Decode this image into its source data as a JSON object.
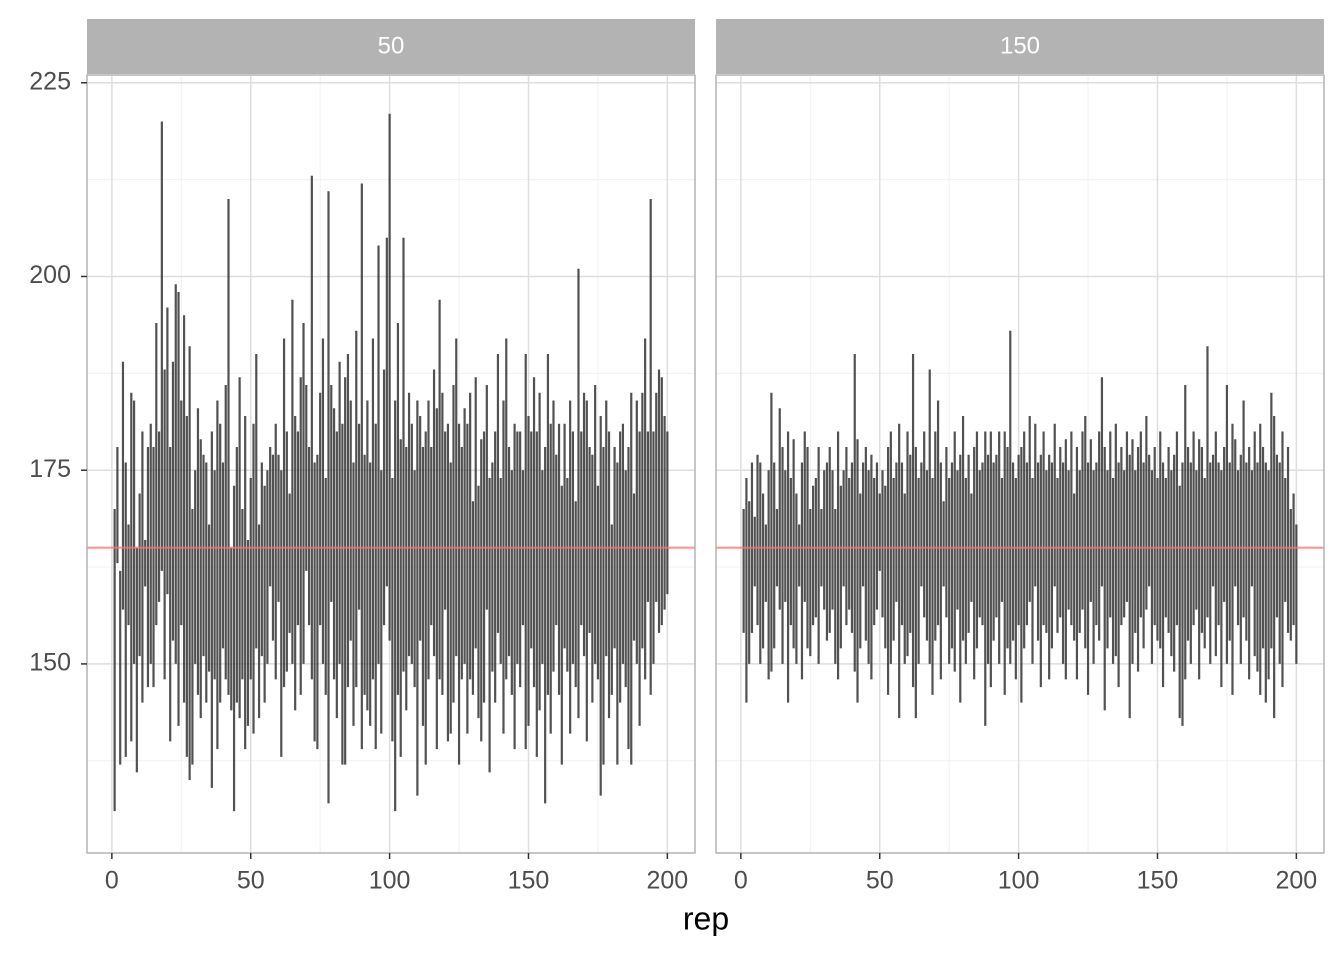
{
  "chart_data": {
    "type": "linerange",
    "xlabel": "rep",
    "color": "#333333",
    "hline": 165,
    "hline_color": "#f8766d",
    "xlim": [
      -8.95,
      209.95
    ],
    "ylim": [
      125.6,
      226.0
    ],
    "xticks": [
      0,
      50,
      100,
      150,
      200
    ],
    "yticks": [
      150,
      175,
      200,
      225
    ],
    "xminor": [
      25,
      75,
      125,
      175
    ],
    "yminor": [
      137.5,
      162.5,
      187.5,
      212.5
    ],
    "grid": true,
    "x": [
      1,
      2,
      3,
      4,
      5,
      6,
      7,
      8,
      9,
      10,
      11,
      12,
      13,
      14,
      15,
      16,
      17,
      18,
      19,
      20,
      21,
      22,
      23,
      24,
      25,
      26,
      27,
      28,
      29,
      30,
      31,
      32,
      33,
      34,
      35,
      36,
      37,
      38,
      39,
      40,
      41,
      42,
      43,
      44,
      45,
      46,
      47,
      48,
      49,
      50,
      51,
      52,
      53,
      54,
      55,
      56,
      57,
      58,
      59,
      60,
      61,
      62,
      63,
      64,
      65,
      66,
      67,
      68,
      69,
      70,
      71,
      72,
      73,
      74,
      75,
      76,
      77,
      78,
      79,
      80,
      81,
      82,
      83,
      84,
      85,
      86,
      87,
      88,
      89,
      90,
      91,
      92,
      93,
      94,
      95,
      96,
      97,
      98,
      99,
      100,
      101,
      102,
      103,
      104,
      105,
      106,
      107,
      108,
      109,
      110,
      111,
      112,
      113,
      114,
      115,
      116,
      117,
      118,
      119,
      120,
      121,
      122,
      123,
      124,
      125,
      126,
      127,
      128,
      129,
      130,
      131,
      132,
      133,
      134,
      135,
      136,
      137,
      138,
      139,
      140,
      141,
      142,
      143,
      144,
      145,
      146,
      147,
      148,
      149,
      150,
      151,
      152,
      153,
      154,
      155,
      156,
      157,
      158,
      159,
      160,
      161,
      162,
      163,
      164,
      165,
      166,
      167,
      168,
      169,
      170,
      171,
      172,
      173,
      174,
      175,
      176,
      177,
      178,
      179,
      180,
      181,
      182,
      183,
      184,
      185,
      186,
      187,
      188,
      189,
      190,
      191,
      192,
      193,
      194,
      195,
      196,
      197,
      198,
      199,
      200
    ],
    "facets": [
      {
        "label": "50",
        "lower": [
          131,
          163,
          137,
          157,
          138,
          155,
          140,
          150,
          136,
          151,
          145,
          160,
          147,
          150,
          147,
          155,
          158,
          162,
          148,
          159,
          140,
          153,
          150,
          142,
          155,
          145,
          138,
          135,
          137,
          150,
          146,
          143,
          151,
          145,
          149,
          134,
          148,
          139,
          145,
          152,
          148,
          146,
          144,
          131,
          145,
          143,
          148,
          139,
          142,
          148,
          141,
          152,
          143,
          151,
          145,
          150,
          160,
          153,
          148,
          158,
          138,
          147,
          149,
          154,
          150,
          144,
          155,
          146,
          150,
          162,
          155,
          148,
          140,
          139,
          155,
          150,
          146,
          132,
          158,
          148,
          143,
          150,
          137,
          137,
          147,
          153,
          142,
          147,
          157,
          139,
          146,
          144,
          142,
          148,
          139,
          150,
          141,
          155,
          160,
          153,
          140,
          131,
          146,
          138,
          149,
          144,
          151,
          150,
          147,
          133,
          153,
          142,
          137,
          148,
          155,
          151,
          139,
          148,
          146,
          157,
          140,
          141,
          145,
          151,
          137,
          148,
          150,
          141,
          148,
          146,
          152,
          143,
          140,
          145,
          157,
          136,
          149,
          145,
          154,
          150,
          141,
          148,
          151,
          146,
          139,
          150,
          147,
          155,
          139,
          142,
          152,
          147,
          138,
          144,
          150,
          132,
          146,
          141,
          149,
          155,
          146,
          137,
          152,
          149,
          141,
          150,
          147,
          143,
          155,
          151,
          140,
          154,
          145,
          150,
          148,
          133,
          137,
          151,
          143,
          146,
          152,
          137,
          145,
          150,
          147,
          139,
          137,
          153,
          150,
          142,
          152,
          148,
          158,
          146,
          150,
          158,
          154,
          155,
          157,
          159
        ],
        "upper": [
          170,
          178,
          162,
          189,
          176,
          168,
          185,
          184,
          165,
          172,
          180,
          166,
          178,
          181,
          178,
          194,
          180,
          220,
          188,
          196,
          178,
          189,
          199,
          198,
          184,
          195,
          182,
          191,
          170,
          175,
          183,
          179,
          177,
          176,
          168,
          180,
          175,
          184,
          181,
          176,
          186,
          210,
          165,
          173,
          178,
          187,
          170,
          182,
          166,
          174,
          181,
          190,
          168,
          176,
          173,
          175,
          178,
          177,
          181,
          177,
          175,
          192,
          180,
          172,
          197,
          182,
          180,
          187,
          194,
          186,
          178,
          213,
          176,
          177,
          185,
          192,
          174,
          211,
          186,
          183,
          180,
          189,
          181,
          187,
          190,
          184,
          176,
          193,
          181,
          212,
          177,
          184,
          176,
          192,
          181,
          204,
          175,
          188,
          205,
          221,
          174,
          184,
          194,
          179,
          205,
          178,
          185,
          181,
          175,
          184,
          182,
          178,
          180,
          184,
          178,
          188,
          183,
          197,
          185,
          180,
          181,
          176,
          186,
          192,
          181,
          178,
          183,
          181,
          185,
          171,
          187,
          173,
          179,
          180,
          186,
          174,
          176,
          180,
          190,
          174,
          184,
          192,
          178,
          175,
          181,
          180,
          180,
          175,
          190,
          182,
          180,
          187,
          180,
          185,
          175,
          178,
          190,
          181,
          184,
          177,
          181,
          173,
          181,
          174,
          184,
          180,
          171,
          201,
          180,
          185,
          184,
          178,
          177,
          186,
          173,
          182,
          178,
          184,
          180,
          168,
          178,
          176,
          180,
          181,
          175,
          178,
          185,
          172,
          184,
          180,
          185,
          192,
          180,
          210,
          180,
          185,
          188,
          187,
          182,
          180
        ]
      },
      {
        "label": "150",
        "lower": [
          154,
          145,
          150,
          154,
          160,
          155,
          150,
          152,
          158,
          148,
          149,
          152,
          160,
          157,
          150,
          158,
          145,
          155,
          152,
          150,
          160,
          148,
          158,
          152,
          151,
          155,
          156,
          150,
          160,
          157,
          153,
          154,
          157,
          150,
          148,
          152,
          160,
          155,
          157,
          154,
          149,
          145,
          152,
          160,
          153,
          150,
          148,
          155,
          157,
          162,
          156,
          152,
          146,
          150,
          153,
          158,
          143,
          155,
          150,
          151,
          154,
          147,
          143,
          150,
          160,
          156,
          153,
          150,
          146,
          153,
          155,
          148,
          160,
          156,
          150,
          152,
          149,
          157,
          145,
          153,
          150,
          154,
          158,
          148,
          152,
          156,
          155,
          142,
          150,
          147,
          153,
          156,
          150,
          158,
          146,
          152,
          150,
          153,
          148,
          155,
          145,
          152,
          155,
          158,
          150,
          160,
          153,
          147,
          155,
          154,
          148,
          152,
          160,
          154,
          156,
          150,
          148,
          157,
          155,
          153,
          148,
          154,
          157,
          152,
          146,
          158,
          150,
          155,
          153,
          160,
          144,
          152,
          156,
          150,
          151,
          147,
          155,
          156,
          158,
          143,
          150,
          154,
          149,
          156,
          152,
          157,
          160,
          150,
          155,
          153,
          152,
          147,
          156,
          154,
          151,
          149,
          155,
          143,
          142,
          148,
          153,
          150,
          155,
          157,
          148,
          154,
          152,
          156,
          150,
          160,
          151,
          155,
          147,
          158,
          150,
          153,
          146,
          160,
          155,
          150,
          156,
          153,
          148,
          160,
          151,
          149,
          146,
          152,
          145,
          148,
          152,
          143,
          156,
          150,
          147,
          158,
          154,
          153,
          155,
          150
        ],
        "upper": [
          170,
          174,
          171,
          176,
          169,
          177,
          176,
          172,
          168,
          175,
          185,
          176,
          170,
          183,
          178,
          175,
          180,
          174,
          179,
          172,
          168,
          176,
          180,
          178,
          170,
          173,
          174,
          178,
          170,
          175,
          176,
          178,
          175,
          170,
          180,
          173,
          175,
          178,
          174,
          176,
          190,
          179,
          172,
          176,
          178,
          175,
          177,
          174,
          176,
          172,
          175,
          173,
          178,
          180,
          174,
          176,
          181,
          176,
          172,
          180,
          177,
          190,
          178,
          174,
          176,
          180,
          175,
          188,
          174,
          180,
          184,
          176,
          171,
          178,
          174,
          176,
          180,
          175,
          177,
          182,
          174,
          177,
          172,
          178,
          180,
          175,
          176,
          180,
          177,
          180,
          176,
          177,
          180,
          174,
          180,
          178,
          193,
          176,
          174,
          177,
          178,
          180,
          176,
          182,
          174,
          181,
          176,
          177,
          180,
          175,
          177,
          176,
          181,
          174,
          178,
          176,
          179,
          175,
          180,
          172,
          178,
          175,
          180,
          182,
          176,
          179,
          175,
          176,
          180,
          187,
          178,
          175,
          180,
          174,
          181,
          176,
          178,
          175,
          180,
          177,
          179,
          175,
          178,
          180,
          176,
          182,
          177,
          175,
          178,
          174,
          180,
          176,
          174,
          178,
          175,
          177,
          180,
          173,
          176,
          186,
          178,
          176,
          180,
          175,
          179,
          178,
          174,
          191,
          176,
          177,
          180,
          176,
          175,
          178,
          186,
          176,
          181,
          179,
          175,
          177,
          184,
          176,
          178,
          175,
          180,
          176,
          181,
          178,
          176,
          175,
          185,
          182,
          177,
          176,
          180,
          174,
          178,
          170,
          172,
          168
        ]
      }
    ]
  }
}
